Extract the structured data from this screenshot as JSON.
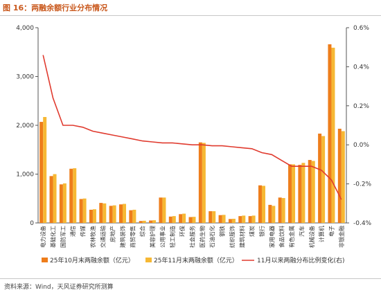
{
  "header": {
    "title": "图 16：两融余额行业分布情况"
  },
  "footer": {
    "source": "资料来源：Wind，天风证券研究所测算"
  },
  "colors": {
    "series_oct": "#ee7d1b",
    "series_nov": "#f6b834",
    "line": "#e03a2e",
    "title": "#c9581c"
  },
  "chart_data": {
    "type": "bar",
    "categories": [
      "电力设备",
      "基础化工",
      "国防军工",
      "通信",
      "传媒",
      "农林牧渔",
      "交通运输",
      "房地产",
      "建筑装饰",
      "商贸零售",
      "综合",
      "美容护理",
      "公用事业",
      "轻工制造",
      "环保",
      "社会服务",
      "医药生物",
      "石油石化",
      "钢铁",
      "纺织服饰",
      "建筑材料",
      "煤炭",
      "银行",
      "家用电器",
      "食品饮料",
      "有色金属",
      "汽车",
      "机械设备",
      "计算机",
      "电子",
      "非银金融"
    ],
    "series": [
      {
        "name": "25年10月末两融余额（亿元）",
        "axis": "left",
        "values": [
          2070,
          960,
          790,
          1110,
          490,
          270,
          410,
          350,
          380,
          260,
          40,
          50,
          520,
          130,
          180,
          120,
          1650,
          240,
          160,
          80,
          140,
          140,
          770,
          370,
          520,
          1200,
          1190,
          1290,
          1830,
          3660,
          1930
        ]
      },
      {
        "name": "25年11月末两融余额（亿元）",
        "axis": "left",
        "values": [
          2170,
          1000,
          810,
          1120,
          500,
          280,
          400,
          360,
          390,
          270,
          45,
          55,
          520,
          140,
          190,
          125,
          1640,
          240,
          165,
          85,
          150,
          150,
          760,
          350,
          510,
          1200,
          1230,
          1270,
          1780,
          3590,
          1880
        ]
      },
      {
        "name": "11月以来两融分布比例变化(右)",
        "axis": "right",
        "type": "line",
        "values": [
          0.46,
          0.24,
          0.1,
          0.1,
          0.09,
          0.07,
          0.06,
          0.05,
          0.04,
          0.03,
          0.02,
          0.015,
          0.01,
          0.01,
          0.005,
          0.0,
          0.0,
          -0.005,
          -0.005,
          -0.01,
          -0.015,
          -0.02,
          -0.04,
          -0.05,
          -0.08,
          -0.11,
          -0.11,
          -0.11,
          -0.13,
          -0.18,
          -0.28
        ]
      }
    ],
    "y_left": {
      "min": 0,
      "max": 4000,
      "ticks": [
        "0",
        "1,000",
        "2,000",
        "3,000",
        "4,000"
      ]
    },
    "y_right": {
      "min": -0.4,
      "max": 0.6,
      "ticks": [
        "-0.4%",
        "-0.2%",
        "0.0%",
        "0.2%",
        "0.4%",
        "0.6%"
      ]
    },
    "legend_position": "bottom",
    "grid": false
  }
}
